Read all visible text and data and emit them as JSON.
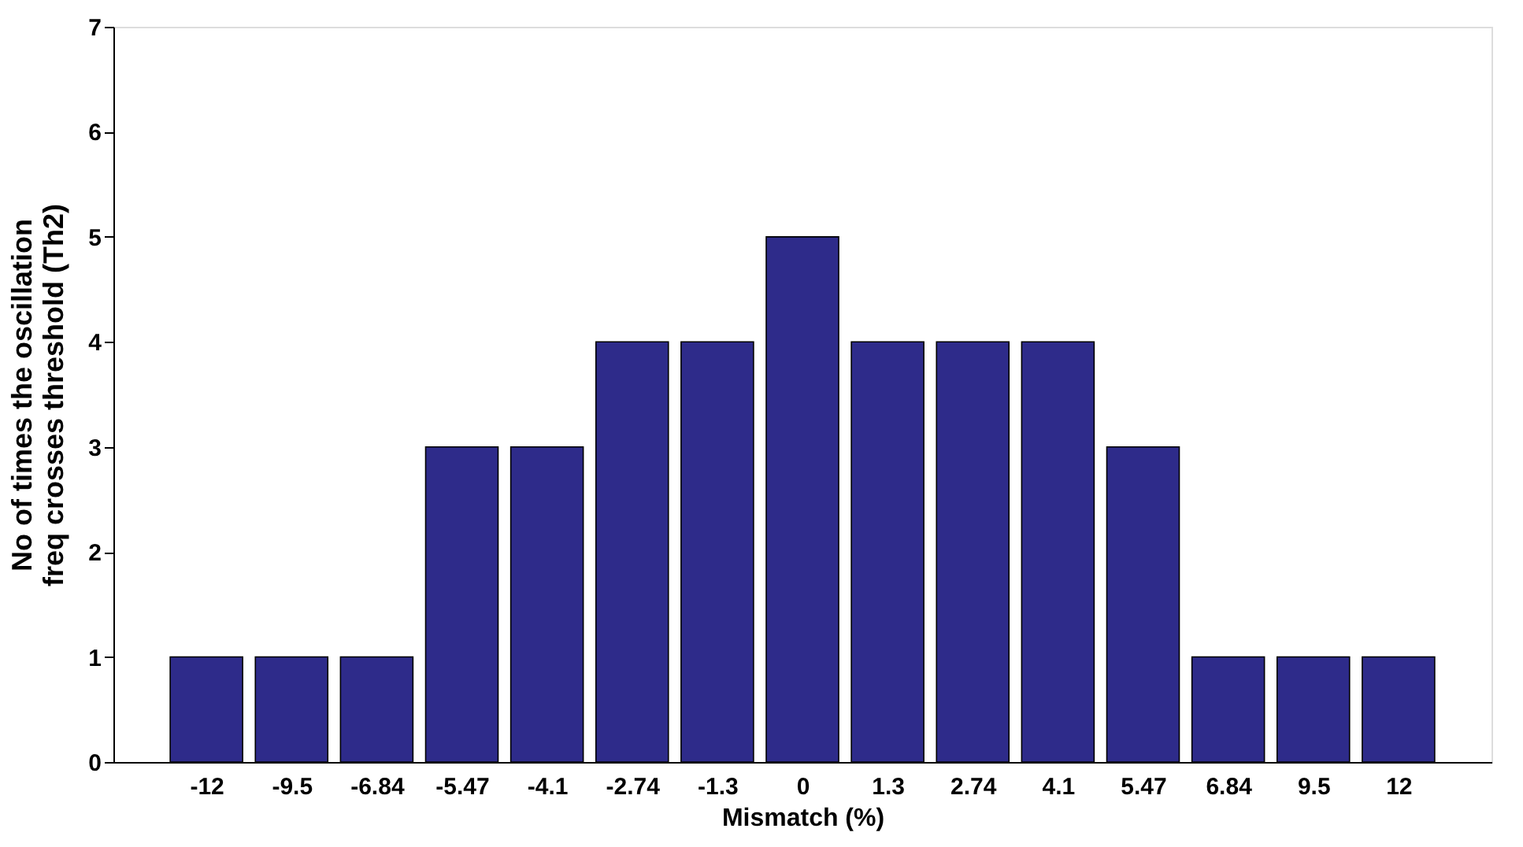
{
  "chart_data": {
    "type": "bar",
    "categories": [
      "-12",
      "-9.5",
      "-6.84",
      "-5.47",
      "-4.1",
      "-2.74",
      "-1.3",
      "0",
      "1.3",
      "2.74",
      "4.1",
      "5.47",
      "6.84",
      "9.5",
      "12"
    ],
    "values": [
      1,
      1,
      1,
      3,
      3,
      4,
      4,
      5,
      4,
      4,
      4,
      3,
      1,
      1,
      1
    ],
    "color": "#2e2b8a",
    "xlabel": "Mismatch (%)",
    "ylabel": "No of times the oscillation\nfreq crosses threshold (Th2)",
    "ylim": [
      0,
      7
    ],
    "yticks": [
      0,
      1,
      2,
      3,
      4,
      5,
      6,
      7
    ],
    "grid": false
  }
}
